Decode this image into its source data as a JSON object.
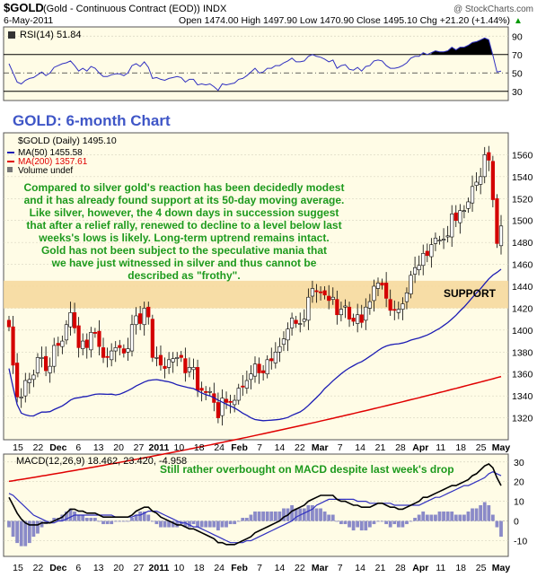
{
  "header": {
    "symbol": "$GOLD",
    "description": "(Gold - Continuous Contract (EOD))",
    "exchange": "INDX",
    "watermark": "@ StockCharts.com",
    "date": "6-May-2011",
    "ohlc": "Open 1474.00  High 1497.90  Low 1470.90  Close 1495.10  Chg +21.20 (+1.44%)",
    "ohlc_arrow": "▲"
  },
  "rsi": {
    "label": "RSI(14) 51.84",
    "ticks": [
      "90",
      "70",
      "50",
      "30"
    ]
  },
  "price": {
    "chart_title": "GOLD: 6-month Chart",
    "legend_symbol": "$GOLD (Daily) 1495.10",
    "legend_ma50": "MA(50) 1455.58",
    "legend_ma200": "MA(200) 1357.61",
    "legend_volume": "Volume undef",
    "support_label": "SUPPORT",
    "ticks": [
      "1560",
      "1540",
      "1520",
      "1500",
      "1480",
      "1460",
      "1440",
      "1420",
      "1400",
      "1380",
      "1360",
      "1340",
      "1320"
    ],
    "commentary": [
      "Compared to silver gold's reaction has been decidedly modest",
      "and it has already found support at its 50-day moving average.",
      "Like silver, however, the 4 down days in succession suggest",
      "that after a relief rally, renewed to decline to a level below last",
      "weeks's lows is likely. Long-term uptrend remains intact.",
      "Gold has not been subject to the speculative mania that",
      "we have just witnessed in silver and thus cannot be",
      "described as \"frothy\"."
    ]
  },
  "macd": {
    "label": "MACD(12,26,9) 18.462, 23.420, -4.958",
    "note": "Still rather overbought on MACD despite last week's drop",
    "ticks": [
      "30",
      "20",
      "10",
      "0",
      "-10"
    ]
  },
  "x_axis": {
    "labels": [
      "15",
      "22",
      "Dec",
      "6",
      "13",
      "20",
      "27",
      "2011",
      "10",
      "18",
      "24",
      "Feb",
      "7",
      "14",
      "22",
      "Mar",
      "7",
      "14",
      "21",
      "28",
      "Apr",
      "11",
      "18",
      "25",
      "May"
    ]
  },
  "colors": {
    "up": "#ffffff",
    "down": "#d40000",
    "candle_outline": "#000000",
    "ma50": "#1c1cb4",
    "ma200": "#e00000",
    "support_band": "#f6d79a",
    "panel_bg": "#fffce6",
    "commentary": "#1d9a1d",
    "title": "#3f56c7",
    "rsi_line": "#3030c0",
    "macd_signal": "#3030c0",
    "hist": "#8a8ac8"
  },
  "chart_data": {
    "type": "candlestick",
    "title": "GOLD: 6-month Chart",
    "dates": [
      "2010-11-12",
      "2010-11-15",
      "2010-11-16",
      "2010-11-17",
      "2010-11-18",
      "2010-11-19",
      "2010-11-22",
      "2010-11-23",
      "2010-11-24",
      "2010-11-26",
      "2010-11-29",
      "2010-11-30",
      "2010-12-01",
      "2010-12-02",
      "2010-12-03",
      "2010-12-06",
      "2010-12-07",
      "2010-12-08",
      "2010-12-09",
      "2010-12-10",
      "2010-12-13",
      "2010-12-14",
      "2010-12-15",
      "2010-12-16",
      "2010-12-17",
      "2010-12-20",
      "2010-12-21",
      "2010-12-22",
      "2010-12-23",
      "2010-12-27",
      "2010-12-28",
      "2010-12-29",
      "2010-12-30",
      "2010-12-31",
      "2011-01-03",
      "2011-01-04",
      "2011-01-05",
      "2011-01-06",
      "2011-01-07",
      "2011-01-10",
      "2011-01-11",
      "2011-01-12",
      "2011-01-13",
      "2011-01-14",
      "2011-01-18",
      "2011-01-19",
      "2011-01-20",
      "2011-01-21",
      "2011-01-24",
      "2011-01-25",
      "2011-01-26",
      "2011-01-27",
      "2011-01-28",
      "2011-01-31",
      "2011-02-01",
      "2011-02-02",
      "2011-02-03",
      "2011-02-04",
      "2011-02-07",
      "2011-02-08",
      "2011-02-09",
      "2011-02-10",
      "2011-02-11",
      "2011-02-14",
      "2011-02-15",
      "2011-02-16",
      "2011-02-17",
      "2011-02-18",
      "2011-02-22",
      "2011-02-23",
      "2011-02-24",
      "2011-02-25",
      "2011-02-28",
      "2011-03-01",
      "2011-03-02",
      "2011-03-03",
      "2011-03-04",
      "2011-03-07",
      "2011-03-08",
      "2011-03-09",
      "2011-03-10",
      "2011-03-11",
      "2011-03-14",
      "2011-03-15",
      "2011-03-16",
      "2011-03-17",
      "2011-03-18",
      "2011-03-21",
      "2011-03-22",
      "2011-03-23",
      "2011-03-24",
      "2011-03-25",
      "2011-03-28",
      "2011-03-29",
      "2011-03-30",
      "2011-03-31",
      "2011-04-01",
      "2011-04-04",
      "2011-04-05",
      "2011-04-06",
      "2011-04-07",
      "2011-04-08",
      "2011-04-11",
      "2011-04-12",
      "2011-04-13",
      "2011-04-14",
      "2011-04-15",
      "2011-04-18",
      "2011-04-19",
      "2011-04-20",
      "2011-04-21",
      "2011-04-25",
      "2011-04-26",
      "2011-04-27",
      "2011-04-28",
      "2011-04-29",
      "2011-05-02",
      "2011-05-03",
      "2011-05-04",
      "2011-05-05",
      "2011-05-06"
    ],
    "close": [
      1403,
      1368,
      1339,
      1339,
      1354,
      1355,
      1359,
      1375,
      1375,
      1363,
      1367,
      1386,
      1386,
      1390,
      1405,
      1416,
      1402,
      1384,
      1390,
      1384,
      1398,
      1397,
      1385,
      1375,
      1375,
      1381,
      1384,
      1384,
      1379,
      1383,
      1405,
      1413,
      1406,
      1420,
      1412,
      1375,
      1375,
      1368,
      1365,
      1373,
      1374,
      1375,
      1375,
      1361,
      1366,
      1366,
      1345,
      1345,
      1343,
      1344,
      1334,
      1320,
      1338,
      1334,
      1334,
      1336,
      1347,
      1348,
      1354,
      1360,
      1369,
      1361,
      1361,
      1373,
      1372,
      1380,
      1385,
      1392,
      1401,
      1411,
      1406,
      1406,
      1410,
      1430,
      1438,
      1435,
      1434,
      1432,
      1427,
      1430,
      1414,
      1419,
      1422,
      1410,
      1408,
      1414,
      1407,
      1421,
      1426,
      1440,
      1443,
      1441,
      1429,
      1418,
      1418,
      1419,
      1424,
      1434,
      1450,
      1457,
      1459,
      1470,
      1468,
      1478,
      1484,
      1482,
      1483,
      1486,
      1506,
      1500,
      1509,
      1509,
      1517,
      1531,
      1535,
      1540,
      1560,
      1555,
      1519,
      1479,
      1495
    ],
    "series": [
      {
        "name": "MA(50)",
        "values_at_ends": [
          1365,
          1455.58
        ]
      },
      {
        "name": "MA(200)",
        "values_at_ends": [
          1262,
          1357.61
        ]
      }
    ],
    "support_band": [
      1420,
      1445
    ],
    "ylim": [
      1300,
      1580
    ],
    "rsi": {
      "name": "RSI(14)",
      "ylim": [
        20,
        100
      ],
      "values": [
        60,
        50,
        40,
        38,
        42,
        44,
        45,
        48,
        51,
        47,
        50,
        56,
        58,
        60,
        61,
        63,
        58,
        52,
        55,
        52,
        57,
        55,
        50,
        46,
        46,
        48,
        49,
        49,
        47,
        50,
        58,
        60,
        57,
        62,
        56,
        44,
        45,
        43,
        42,
        44,
        45,
        46,
        45,
        40,
        43,
        43,
        37,
        38,
        37,
        38,
        35,
        31,
        38,
        37,
        38,
        39,
        43,
        44,
        47,
        51,
        55,
        50,
        51,
        55,
        55,
        58,
        58,
        61,
        63,
        66,
        62,
        62,
        63,
        68,
        70,
        68,
        67,
        65,
        62,
        64,
        55,
        58,
        59,
        54,
        53,
        56,
        52,
        57,
        58,
        63,
        64,
        63,
        58,
        55,
        55,
        56,
        58,
        61,
        66,
        68,
        68,
        72,
        70,
        72,
        74,
        73,
        73,
        74,
        78,
        75,
        78,
        78,
        80,
        83,
        84,
        86,
        88,
        86,
        69,
        51,
        52
      ]
    },
    "macd": {
      "name": "MACD(12,26,9)",
      "ylim": [
        -18,
        34
      ],
      "macd": [
        12,
        8,
        4,
        1,
        -1,
        -2,
        -2,
        -2,
        -1,
        -1,
        -1,
        0,
        1,
        2,
        4,
        6,
        6,
        5,
        5,
        4,
        4,
        4,
        3,
        2,
        2,
        2,
        2,
        2,
        2,
        2,
        3,
        5,
        6,
        7,
        7,
        5,
        4,
        2,
        1,
        0,
        -1,
        -2,
        -2,
        -3,
        -4,
        -4,
        -5,
        -6,
        -7,
        -8,
        -9,
        -11,
        -11,
        -12,
        -12,
        -12,
        -11,
        -10,
        -9,
        -8,
        -6,
        -5,
        -4,
        -3,
        -2,
        -1,
        0,
        2,
        3,
        5,
        6,
        7,
        8,
        10,
        11,
        12,
        13,
        13,
        13,
        13,
        11,
        10,
        10,
        9,
        8,
        8,
        7,
        7,
        7,
        8,
        9,
        9,
        8,
        7,
        7,
        6,
        6,
        7,
        8,
        9,
        10,
        12,
        12,
        13,
        14,
        15,
        16,
        17,
        18,
        18,
        19,
        20,
        21,
        23,
        24,
        26,
        28,
        29,
        27,
        22,
        18
      ],
      "signal": [
        14,
        13,
        11,
        9,
        7,
        5,
        3,
        2,
        1,
        0,
        -1,
        -1,
        0,
        0,
        1,
        2,
        3,
        3,
        3,
        3,
        3,
        3,
        3,
        3,
        3,
        3,
        2,
        2,
        2,
        2,
        2,
        3,
        3,
        4,
        5,
        5,
        5,
        4,
        3,
        2,
        1,
        0,
        -1,
        -1,
        -2,
        -3,
        -3,
        -4,
        -5,
        -6,
        -7,
        -8,
        -9,
        -10,
        -11,
        -11,
        -11,
        -11,
        -10,
        -10,
        -9,
        -8,
        -7,
        -6,
        -5,
        -4,
        -3,
        -2,
        -1,
        0,
        2,
        3,
        4,
        5,
        6,
        8,
        9,
        10,
        11,
        11,
        11,
        11,
        11,
        11,
        11,
        10,
        10,
        10,
        9,
        9,
        9,
        9,
        9,
        9,
        8,
        8,
        8,
        8,
        8,
        8,
        8,
        9,
        10,
        11,
        12,
        12,
        13,
        14,
        15,
        16,
        17,
        18,
        18,
        19,
        20,
        21,
        22,
        24,
        25,
        24,
        23
      ]
    }
  }
}
